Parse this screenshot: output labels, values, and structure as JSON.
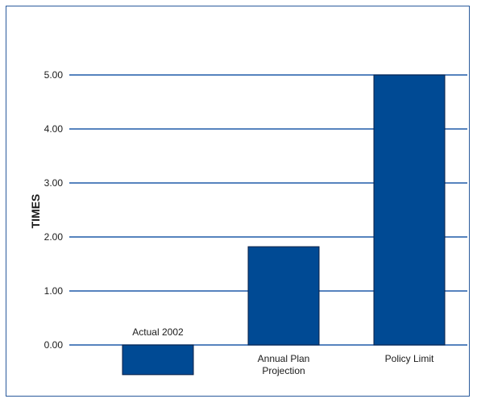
{
  "chart_data": {
    "type": "bar",
    "title": "",
    "xlabel": "",
    "ylabel": "TIMES",
    "categories": [
      [
        "Actual 2002"
      ],
      [
        "Annual Plan",
        "Projection"
      ],
      [
        "Policy Limit"
      ]
    ],
    "values": [
      -0.55,
      1.82,
      5.0
    ],
    "yticks": [
      "0.00",
      "1.00",
      "2.00",
      "3.00",
      "4.00",
      "5.00"
    ],
    "ylim": [
      -0.55,
      5.0
    ],
    "grid": true,
    "colors": {
      "bar": "#004a94",
      "bar_edge": "#0a1f44",
      "grid": "#1f5aa8",
      "frame": "#2a5a9c"
    }
  }
}
